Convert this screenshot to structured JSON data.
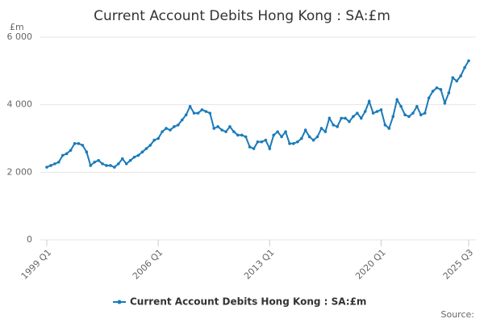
{
  "chart_data": {
    "type": "line",
    "title": "Current Account Debits Hong Kong : SA:£m",
    "y_unit": "£m",
    "source": "Source:",
    "categories": [
      "1999 Q1",
      null,
      null,
      null,
      null,
      null,
      null,
      null,
      null,
      null,
      null,
      null,
      null,
      null,
      null,
      null,
      null,
      null,
      null,
      null,
      null,
      null,
      null,
      null,
      null,
      null,
      null,
      null,
      "2006 Q1",
      null,
      null,
      null,
      null,
      null,
      null,
      null,
      null,
      null,
      null,
      null,
      null,
      null,
      null,
      null,
      null,
      null,
      null,
      null,
      null,
      null,
      null,
      null,
      null,
      null,
      null,
      null,
      "2013 Q1",
      null,
      null,
      null,
      null,
      null,
      null,
      null,
      null,
      null,
      null,
      null,
      null,
      null,
      null,
      null,
      null,
      null,
      null,
      null,
      null,
      null,
      null,
      null,
      null,
      null,
      null,
      null,
      "2020 Q1",
      null,
      null,
      null,
      null,
      null,
      null,
      null,
      null,
      null,
      null,
      null,
      null,
      null,
      null,
      null,
      null,
      null,
      null,
      null,
      null,
      null,
      "2025 Q3"
    ],
    "series": [
      {
        "name": "Current Account Debits Hong Kong : SA:£m",
        "color": "#1a7bb9",
        "values": [
          2150,
          2200,
          2250,
          2300,
          2500,
          2550,
          2650,
          2850,
          2850,
          2800,
          2600,
          2200,
          2300,
          2350,
          2250,
          2200,
          2200,
          2150,
          2250,
          2400,
          2250,
          2350,
          2450,
          2500,
          2600,
          2700,
          2800,
          2950,
          3000,
          3200,
          3300,
          3250,
          3350,
          3400,
          3550,
          3700,
          3950,
          3750,
          3750,
          3850,
          3800,
          3750,
          3300,
          3350,
          3250,
          3200,
          3350,
          3200,
          3100,
          3100,
          3050,
          2750,
          2700,
          2900,
          2900,
          2950,
          2700,
          3100,
          3200,
          3050,
          3200,
          2850,
          2850,
          2900,
          3000,
          3250,
          3050,
          2950,
          3050,
          3300,
          3200,
          3600,
          3400,
          3350,
          3600,
          3600,
          3500,
          3650,
          3750,
          3600,
          3800,
          4100,
          3750,
          3800,
          3850,
          3400,
          3300,
          3650,
          4150,
          3950,
          3700,
          3650,
          3750,
          3950,
          3700,
          3750,
          4200,
          4400,
          4500,
          4450,
          4050,
          4350,
          4800,
          4700,
          4850,
          5100,
          5300
        ]
      }
    ],
    "ylim": [
      0,
      6000
    ],
    "yticks": [
      0,
      {
        "value": 2000,
        "label": "2 000"
      },
      {
        "value": 4000,
        "label": "4 000"
      },
      {
        "value": 6000,
        "label": "6 000"
      }
    ],
    "grid": true,
    "legend": "bottom"
  }
}
